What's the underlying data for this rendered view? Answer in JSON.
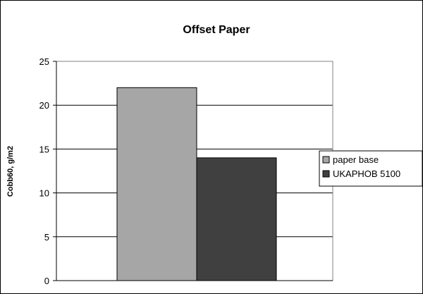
{
  "chart_data": {
    "type": "bar",
    "title": "Offset Paper",
    "xlabel": "",
    "ylabel": "Cobb60, g/m2",
    "categories": [
      ""
    ],
    "series": [
      {
        "name": "paper base",
        "values": [
          22
        ],
        "color": "#a6a6a6"
      },
      {
        "name": "UKAPHOB 5100",
        "values": [
          14
        ],
        "color": "#404040"
      }
    ],
    "ylim": [
      0,
      25
    ],
    "yticks": [
      0,
      5,
      10,
      15,
      20,
      25
    ],
    "grid": true,
    "legend_position": "right"
  }
}
